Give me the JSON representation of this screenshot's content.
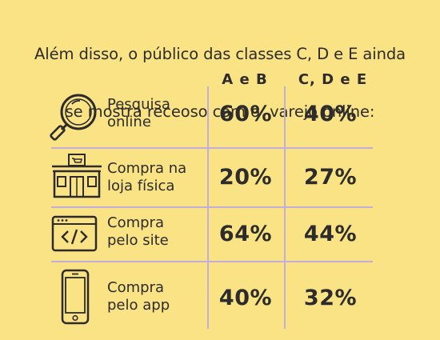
{
  "title": {
    "line1": "Além disso, o público das classes C, D e E ainda",
    "line2": "se mostra receoso com o  varejo online:"
  },
  "colors": {
    "background": "#f9e384",
    "text": "#2d2b2b",
    "grid": "#c2aedb"
  },
  "chart_data": {
    "type": "table",
    "title": "Além disso, o público das classes C, D e E ainda se mostra receoso com o  varejo online:",
    "columns": [
      "A e B",
      "C, D e E"
    ],
    "rows": [
      {
        "line1": "Pesquisa",
        "line2": "online",
        "values": [
          "60%",
          "40%"
        ],
        "icon": "magnifier-icon"
      },
      {
        "line1": "Compra na",
        "line2": "loja física",
        "values": [
          "20%",
          "27%"
        ],
        "icon": "storefront-icon"
      },
      {
        "line1": "Compra",
        "line2": "pelo site",
        "values": [
          "64%",
          "44%"
        ],
        "icon": "browser-code-icon"
      },
      {
        "line1": "Compra",
        "line2": "pelo app",
        "values": [
          "40%",
          "32%"
        ],
        "icon": "smartphone-icon"
      }
    ]
  }
}
